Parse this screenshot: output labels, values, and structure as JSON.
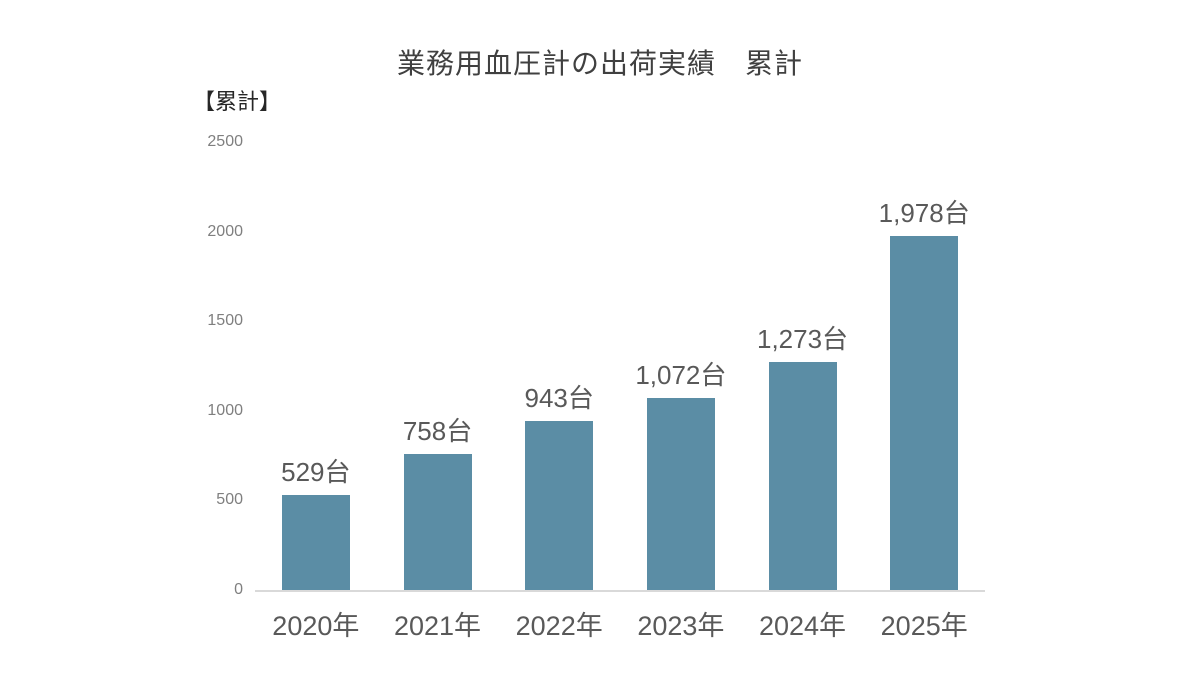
{
  "chart_data": {
    "type": "bar",
    "title": "業務用血圧計の出荷実績　累計",
    "axis_unit_label": "【累計】",
    "categories": [
      "2020年",
      "2021年",
      "2022年",
      "2023年",
      "2024年",
      "2025年"
    ],
    "values": [
      529,
      758,
      943,
      1072,
      1273,
      1978
    ],
    "value_labels": [
      "529台",
      "758台",
      "943台",
      "1,072台",
      "1,273台",
      "1,978台"
    ],
    "xlabel": "",
    "ylabel": "",
    "ylim": [
      0,
      2500
    ],
    "yticks": [
      0,
      500,
      1000,
      1500,
      2000,
      2500
    ],
    "grid": false,
    "legend_position": "none",
    "colors": {
      "bar": "#5B8DA5",
      "axis_line": "#D9D9D9",
      "data_label": "#595959",
      "tick_label": "#7F7F7F",
      "title": "#404040"
    }
  }
}
